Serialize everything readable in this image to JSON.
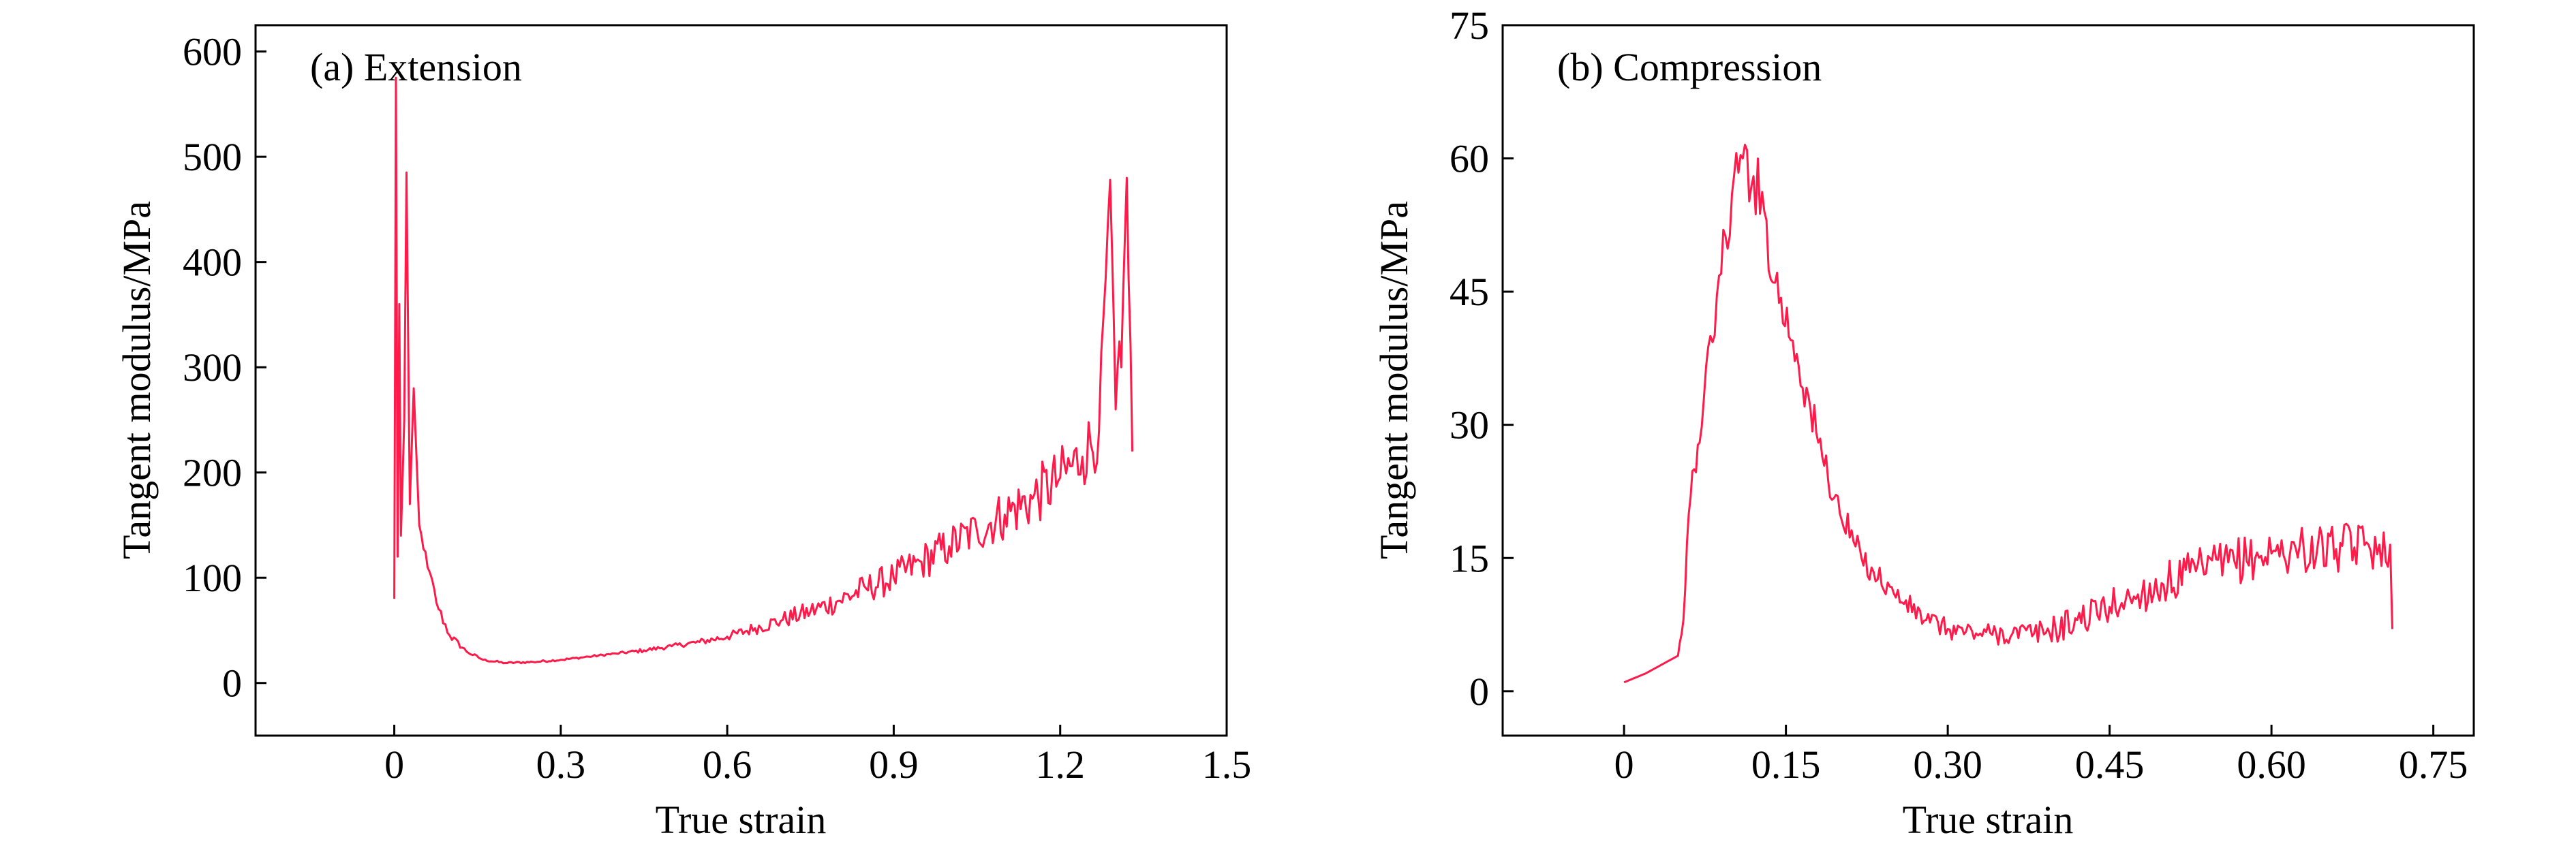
{
  "chart_data": [
    {
      "type": "line",
      "title": "(a) Extension",
      "xlabel": "True strain",
      "ylabel": "Tangent modulus/MPa",
      "xlim": [
        -0.25,
        1.5
      ],
      "ylim": [
        -50,
        625
      ],
      "xticks": [
        0,
        0.3,
        0.6,
        0.9,
        1.2,
        1.5
      ],
      "xtick_labels": [
        "0",
        "0.3",
        "0.6",
        "0.9",
        "1.2",
        "1.5"
      ],
      "yticks": [
        0,
        100,
        200,
        300,
        400,
        500,
        600
      ],
      "ytick_labels": [
        "0",
        "100",
        "200",
        "300",
        "400",
        "500",
        "600"
      ],
      "series": [
        {
          "name": "Extension",
          "color": "#ff1a4a",
          "x": [
            0.0,
            0.003,
            0.006,
            0.009,
            0.012,
            0.018,
            0.022,
            0.028,
            0.035,
            0.045,
            0.06,
            0.08,
            0.1,
            0.13,
            0.16,
            0.2,
            0.25,
            0.3,
            0.35,
            0.4,
            0.45,
            0.5,
            0.55,
            0.6,
            0.65,
            0.7,
            0.75,
            0.8,
            0.85,
            0.9,
            0.95,
            1.0,
            1.05,
            1.1,
            1.15,
            1.2,
            1.24,
            1.27,
            1.29,
            1.3,
            1.31,
            1.32,
            1.33
          ],
          "y": [
            80,
            575,
            120,
            360,
            140,
            250,
            485,
            170,
            280,
            150,
            110,
            70,
            45,
            30,
            22,
            19,
            20,
            22,
            25,
            28,
            31,
            35,
            39,
            44,
            52,
            60,
            68,
            78,
            90,
            100,
            115,
            130,
            145,
            160,
            175,
            195,
            215,
            240,
            478,
            260,
            300,
            480,
            220
          ],
          "noise": [
            0,
            0,
            0,
            0,
            0,
            0,
            0,
            0,
            0,
            0,
            8,
            6,
            4,
            2,
            1,
            1,
            1,
            1,
            1,
            1,
            2,
            2,
            3,
            4,
            6,
            8,
            10,
            12,
            14,
            16,
            18,
            20,
            22,
            25,
            28,
            30,
            32,
            35,
            0,
            38,
            40,
            0,
            40
          ]
        }
      ]
    },
    {
      "type": "line",
      "title": "(b) Compression",
      "xlabel": "True strain",
      "ylabel": "Tangent modulus/MPa",
      "xlim": [
        -0.1125,
        0.7875
      ],
      "ylim": [
        -5,
        75
      ],
      "xticks": [
        0,
        0.15,
        0.3,
        0.45,
        0.6,
        0.75
      ],
      "xtick_labels": [
        "0",
        "0.15",
        "0.30",
        "0.45",
        "0.60",
        "0.75"
      ],
      "yticks": [
        0,
        15,
        30,
        45,
        60,
        75
      ],
      "ytick_labels": [
        "0",
        "15",
        "30",
        "45",
        "60",
        "75"
      ],
      "series": [
        {
          "name": "Compression",
          "color": "#ff1a4a",
          "x": [
            0.0,
            0.02,
            0.05,
            0.055,
            0.06,
            0.065,
            0.07,
            0.08,
            0.09,
            0.1,
            0.11,
            0.12,
            0.13,
            0.14,
            0.16,
            0.18,
            0.2,
            0.22,
            0.25,
            0.28,
            0.3,
            0.33,
            0.36,
            0.38,
            0.4,
            0.42,
            0.45,
            0.48,
            0.5,
            0.53,
            0.56,
            0.6,
            0.63,
            0.66,
            0.69,
            0.7,
            0.71,
            0.712
          ],
          "y": [
            1,
            2,
            4,
            8,
            20,
            25,
            28,
            40,
            47,
            56,
            60,
            58,
            54,
            46,
            38,
            28,
            20,
            15,
            11,
            8,
            7,
            6.5,
            6.5,
            6.5,
            7,
            8,
            9.5,
            11,
            12,
            13.5,
            14.5,
            15.5,
            16,
            16,
            16.5,
            16.5,
            16.5,
            7
          ],
          "noise": [
            0,
            0,
            0,
            0.5,
            1.5,
            2,
            2.5,
            3,
            3.5,
            4,
            4,
            4,
            3.5,
            3.5,
            3,
            2.5,
            2,
            1.6,
            1.3,
            1.2,
            1.2,
            1.2,
            1.3,
            1.4,
            1.6,
            1.8,
            2,
            2.2,
            2.4,
            2.5,
            2.6,
            2.7,
            2.7,
            2.7,
            2.7,
            2.7,
            2.5,
            0
          ]
        }
      ]
    }
  ]
}
